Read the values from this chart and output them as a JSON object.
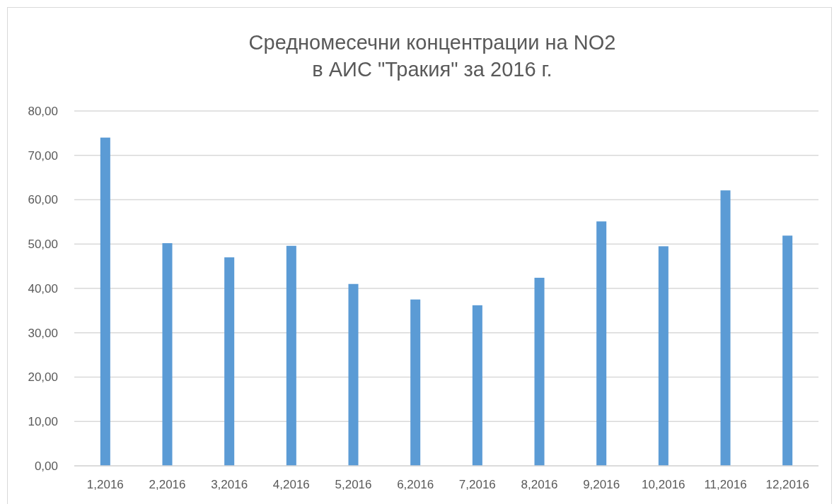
{
  "chart_data": {
    "type": "bar",
    "title": "Средномесечни концентрации на NO2\nв АИС \"Тракия\" за 2016 г.",
    "categories": [
      "1,2016",
      "2,2016",
      "3,2016",
      "4,2016",
      "5,2016",
      "6,2016",
      "7,2016",
      "8,2016",
      "9,2016",
      "10,2016",
      "11,2016",
      "12,2016"
    ],
    "values": [
      74.0,
      50.2,
      47.0,
      49.6,
      41.0,
      37.5,
      36.2,
      42.4,
      55.1,
      49.5,
      62.1,
      51.9
    ],
    "color": "#5b9bd5",
    "ylim": [
      0,
      80
    ],
    "yticks": [
      {
        "value": 0,
        "label": "0,00"
      },
      {
        "value": 10,
        "label": "10,00"
      },
      {
        "value": 20,
        "label": "20,00"
      },
      {
        "value": 30,
        "label": "30,00"
      },
      {
        "value": 40,
        "label": "40,00"
      },
      {
        "value": 50,
        "label": "50,00"
      },
      {
        "value": 60,
        "label": "60,00"
      },
      {
        "value": 70,
        "label": "70,00"
      },
      {
        "value": 80,
        "label": "80,00"
      }
    ],
    "grid": "y"
  }
}
